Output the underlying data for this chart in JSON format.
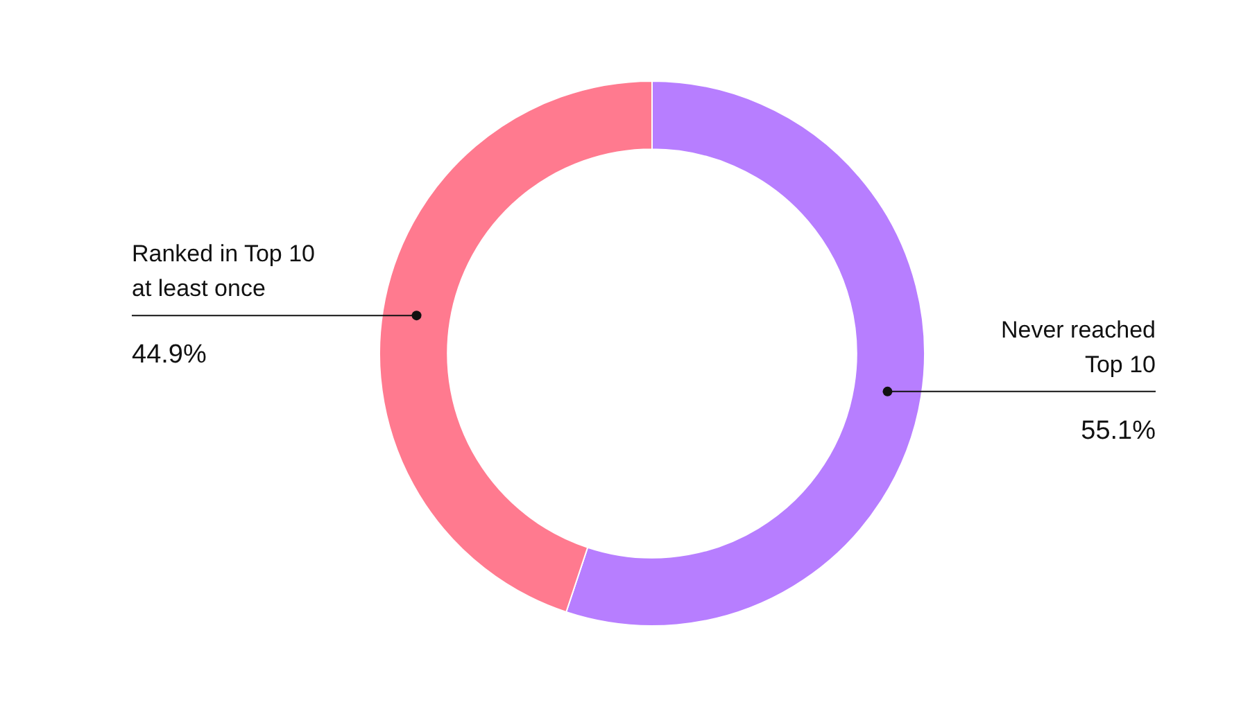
{
  "chart_data": {
    "type": "donut",
    "categories": [
      "Never reached\nTop 10",
      "Ranked in Top 10\nat least once"
    ],
    "values": [
      55.1,
      44.9
    ],
    "colors": [
      "#b77eff",
      "#ff7a8f"
    ],
    "value_labels": [
      "55.1%",
      "44.9%"
    ],
    "legend": false
  }
}
